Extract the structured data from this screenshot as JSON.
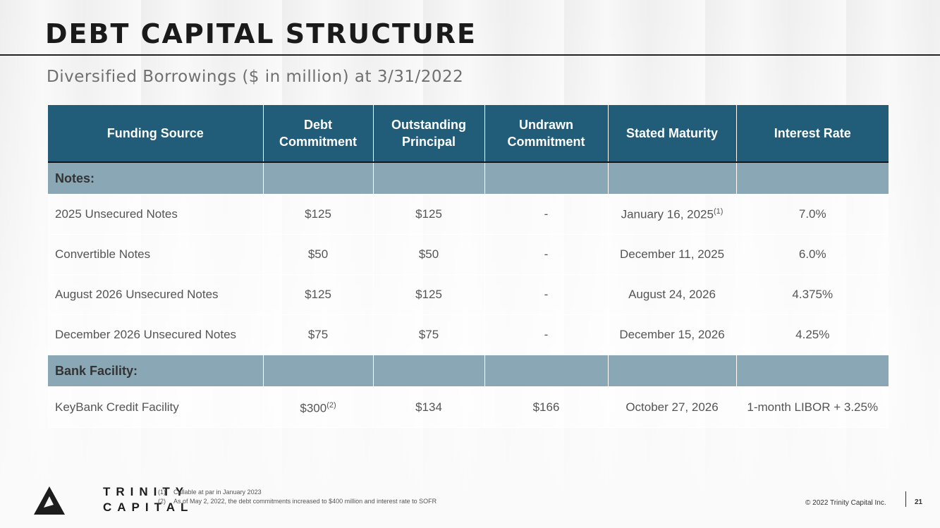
{
  "header": {
    "title": "DEBT CAPITAL STRUCTURE",
    "subtitle": "Diversified Borrowings ($ in million) at 3/31/2022"
  },
  "table": {
    "columns": [
      "Funding Source",
      "Debt Commitment",
      "Outstanding Principal",
      "Undrawn Commitment",
      "Stated Maturity",
      "Interest Rate"
    ],
    "sections": [
      {
        "label": "Notes:",
        "rows": [
          {
            "source": "2025 Unsecured Notes",
            "commitment": "$125",
            "commitment_note": "",
            "principal": "$125",
            "undrawn": "-",
            "maturity": "January 16, 2025",
            "maturity_note": "(1)",
            "rate": "7.0%"
          },
          {
            "source": "Convertible Notes",
            "commitment": "$50",
            "commitment_note": "",
            "principal": "$50",
            "undrawn": "-",
            "maturity": "December 11, 2025",
            "maturity_note": "",
            "rate": "6.0%"
          },
          {
            "source": "August 2026 Unsecured Notes",
            "commitment": "$125",
            "commitment_note": "",
            "principal": "$125",
            "undrawn": "-",
            "maturity": "August 24, 2026",
            "maturity_note": "",
            "rate": "4.375%"
          },
          {
            "source": "December 2026 Unsecured Notes",
            "commitment": "$75",
            "commitment_note": "",
            "principal": "$75",
            "undrawn": "-",
            "maturity": "December 15, 2026",
            "maturity_note": "",
            "rate": "4.25%"
          }
        ]
      },
      {
        "label": "Bank Facility:",
        "rows": [
          {
            "source": "KeyBank Credit Facility",
            "commitment": "$300",
            "commitment_note": "(2)",
            "principal": "$134",
            "undrawn": "$166",
            "maturity": "October 27, 2026",
            "maturity_note": "",
            "rate": "1-month LIBOR + 3.25%"
          }
        ]
      }
    ]
  },
  "logo": {
    "line1": "TRINITY",
    "line2": "CAPITAL"
  },
  "footnotes": [
    {
      "num": "(1)",
      "text": "Callable at par in January 2023"
    },
    {
      "num": "(2)",
      "text": "As of May 2, 2022, the debt commitments increased to $400 million and interest rate to SOFR"
    }
  ],
  "footer": {
    "copyright": "© 2022 Trinity Capital Inc.",
    "page": "21"
  },
  "colors": {
    "header_bg": "#215c78",
    "section_bg": "#8aa7b6"
  }
}
